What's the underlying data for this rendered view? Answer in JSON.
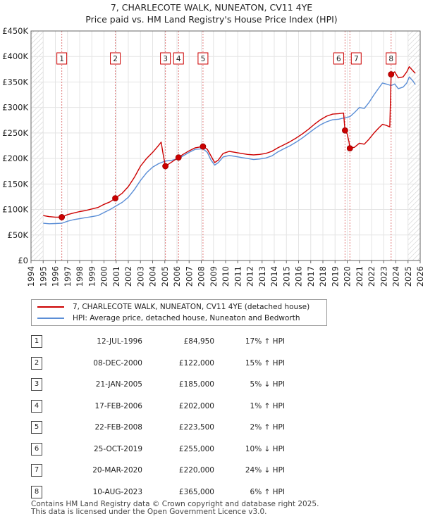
{
  "title_line1": "7, CHARLECOTE WALK, NUNEATON, CV11 4YE",
  "title_line2": "Price paid vs. HM Land Registry's House Price Index (HPI)",
  "chart_data": {
    "type": "line",
    "title": "Price paid vs. HM Land Registry's House Price Index (HPI)",
    "xlim": [
      1994,
      2026
    ],
    "ylim": [
      0,
      450000
    ],
    "x_ticks": [
      1994,
      1995,
      1996,
      1997,
      1998,
      1999,
      2000,
      2001,
      2002,
      2003,
      2004,
      2005,
      2006,
      2007,
      2008,
      2009,
      2010,
      2011,
      2012,
      2013,
      2014,
      2015,
      2016,
      2017,
      2018,
      2019,
      2020,
      2021,
      2022,
      2023,
      2024,
      2025,
      2026
    ],
    "y_ticks": [
      {
        "value": 0,
        "label": "£0"
      },
      {
        "value": 50000,
        "label": "£50K"
      },
      {
        "value": 100000,
        "label": "£100K"
      },
      {
        "value": 150000,
        "label": "£150K"
      },
      {
        "value": 200000,
        "label": "£200K"
      },
      {
        "value": 250000,
        "label": "£250K"
      },
      {
        "value": 300000,
        "label": "£300K"
      },
      {
        "value": 350000,
        "label": "£350K"
      },
      {
        "value": 400000,
        "label": "£400K"
      },
      {
        "value": 450000,
        "label": "£450K"
      }
    ],
    "series": [
      {
        "name": "7, CHARLECOTE WALK, NUNEATON, CV11 4YE (detached house)",
        "color": "#cc0000",
        "points": [
          [
            1995.0,
            88000
          ],
          [
            1995.5,
            86000
          ],
          [
            1996.0,
            85000
          ],
          [
            1996.53,
            84950
          ],
          [
            1997.0,
            90000
          ],
          [
            1997.5,
            93000
          ],
          [
            1998.0,
            96000
          ],
          [
            1998.5,
            98000
          ],
          [
            1999.0,
            101000
          ],
          [
            1999.5,
            104000
          ],
          [
            2000.0,
            110000
          ],
          [
            2000.5,
            115000
          ],
          [
            2000.93,
            122000
          ],
          [
            2001.5,
            132000
          ],
          [
            2002.0,
            145000
          ],
          [
            2002.5,
            163000
          ],
          [
            2003.0,
            185000
          ],
          [
            2003.5,
            200000
          ],
          [
            2004.0,
            212000
          ],
          [
            2004.4,
            223000
          ],
          [
            2004.7,
            232000
          ],
          [
            2004.85,
            210000
          ],
          [
            2005.05,
            185000
          ],
          [
            2005.5,
            192000
          ],
          [
            2006.13,
            202000
          ],
          [
            2006.5,
            208000
          ],
          [
            2007.0,
            215000
          ],
          [
            2007.5,
            221000
          ],
          [
            2008.14,
            223500
          ],
          [
            2008.5,
            218000
          ],
          [
            2008.8,
            205000
          ],
          [
            2009.1,
            192000
          ],
          [
            2009.4,
            197000
          ],
          [
            2009.8,
            210000
          ],
          [
            2010.3,
            214000
          ],
          [
            2010.8,
            212000
          ],
          [
            2011.3,
            210000
          ],
          [
            2011.8,
            208000
          ],
          [
            2012.3,
            207000
          ],
          [
            2012.8,
            208000
          ],
          [
            2013.3,
            210000
          ],
          [
            2013.8,
            214000
          ],
          [
            2014.3,
            221000
          ],
          [
            2014.8,
            227000
          ],
          [
            2015.3,
            233000
          ],
          [
            2015.8,
            240000
          ],
          [
            2016.3,
            248000
          ],
          [
            2016.8,
            257000
          ],
          [
            2017.3,
            267000
          ],
          [
            2017.8,
            276000
          ],
          [
            2018.3,
            283000
          ],
          [
            2018.8,
            287000
          ],
          [
            2019.3,
            288000
          ],
          [
            2019.7,
            289000
          ],
          [
            2019.82,
            255000
          ],
          [
            2020.0,
            248000
          ],
          [
            2020.15,
            232000
          ],
          [
            2020.22,
            220000
          ],
          [
            2020.6,
            222000
          ],
          [
            2021.0,
            230000
          ],
          [
            2021.4,
            228000
          ],
          [
            2021.8,
            238000
          ],
          [
            2022.2,
            250000
          ],
          [
            2022.6,
            260000
          ],
          [
            2022.9,
            267000
          ],
          [
            2023.2,
            265000
          ],
          [
            2023.5,
            262000
          ],
          [
            2023.61,
            365000
          ],
          [
            2023.9,
            370000
          ],
          [
            2024.2,
            358000
          ],
          [
            2024.6,
            360000
          ],
          [
            2024.9,
            370000
          ],
          [
            2025.1,
            380000
          ],
          [
            2025.4,
            372000
          ],
          [
            2025.6,
            367000
          ]
        ]
      },
      {
        "name": "HPI: Average price, detached house, Nuneaton and Bedworth",
        "color": "#5b8ed6",
        "points": [
          [
            1995.0,
            73000
          ],
          [
            1995.5,
            72000
          ],
          [
            1996.0,
            72500
          ],
          [
            1996.53,
            73000
          ],
          [
            1997.0,
            77000
          ],
          [
            1997.5,
            80000
          ],
          [
            1998.0,
            82000
          ],
          [
            1998.5,
            84000
          ],
          [
            1999.0,
            86000
          ],
          [
            1999.5,
            88000
          ],
          [
            2000.0,
            94000
          ],
          [
            2000.5,
            100000
          ],
          [
            2000.93,
            106000
          ],
          [
            2001.5,
            114000
          ],
          [
            2002.0,
            124000
          ],
          [
            2002.5,
            139000
          ],
          [
            2003.0,
            157000
          ],
          [
            2003.5,
            172000
          ],
          [
            2004.0,
            183000
          ],
          [
            2004.5,
            190000
          ],
          [
            2005.05,
            195000
          ],
          [
            2005.5,
            196000
          ],
          [
            2006.13,
            200000
          ],
          [
            2006.5,
            205000
          ],
          [
            2007.0,
            212000
          ],
          [
            2007.5,
            218000
          ],
          [
            2008.14,
            219000
          ],
          [
            2008.5,
            212000
          ],
          [
            2008.8,
            197000
          ],
          [
            2009.1,
            187000
          ],
          [
            2009.4,
            192000
          ],
          [
            2009.8,
            203000
          ],
          [
            2010.3,
            206000
          ],
          [
            2010.8,
            204000
          ],
          [
            2011.3,
            202000
          ],
          [
            2011.8,
            200000
          ],
          [
            2012.3,
            198000
          ],
          [
            2012.8,
            199000
          ],
          [
            2013.3,
            201000
          ],
          [
            2013.8,
            205000
          ],
          [
            2014.3,
            213000
          ],
          [
            2014.8,
            219000
          ],
          [
            2015.3,
            225000
          ],
          [
            2015.8,
            232000
          ],
          [
            2016.3,
            240000
          ],
          [
            2016.8,
            249000
          ],
          [
            2017.3,
            258000
          ],
          [
            2017.8,
            266000
          ],
          [
            2018.3,
            272000
          ],
          [
            2018.8,
            276000
          ],
          [
            2019.3,
            277000
          ],
          [
            2019.82,
            280000
          ],
          [
            2020.22,
            282000
          ],
          [
            2020.6,
            290000
          ],
          [
            2021.0,
            300000
          ],
          [
            2021.4,
            298000
          ],
          [
            2021.8,
            310000
          ],
          [
            2022.2,
            325000
          ],
          [
            2022.6,
            338000
          ],
          [
            2022.9,
            348000
          ],
          [
            2023.2,
            346000
          ],
          [
            2023.61,
            343000
          ],
          [
            2023.9,
            346000
          ],
          [
            2024.2,
            337000
          ],
          [
            2024.6,
            340000
          ],
          [
            2024.9,
            348000
          ],
          [
            2025.1,
            360000
          ],
          [
            2025.4,
            352000
          ],
          [
            2025.6,
            345000
          ]
        ]
      }
    ],
    "sales": [
      {
        "num": "1",
        "date": "12-JUL-1996",
        "price": "£84,950",
        "hpi": "17% ↑ HPI",
        "x": 1996.53,
        "y": 84950
      },
      {
        "num": "2",
        "date": "08-DEC-2000",
        "price": "£122,000",
        "hpi": "15% ↑ HPI",
        "x": 2000.93,
        "y": 122000
      },
      {
        "num": "3",
        "date": "21-JAN-2005",
        "price": "£185,000",
        "hpi": "5% ↓ HPI",
        "x": 2005.05,
        "y": 185000
      },
      {
        "num": "4",
        "date": "17-FEB-2006",
        "price": "£202,000",
        "hpi": "1% ↑ HPI",
        "x": 2006.13,
        "y": 202000
      },
      {
        "num": "5",
        "date": "22-FEB-2008",
        "price": "£223,500",
        "hpi": "2% ↑ HPI",
        "x": 2008.14,
        "y": 223500
      },
      {
        "num": "6",
        "date": "25-OCT-2019",
        "price": "£255,000",
        "hpi": "10% ↓ HPI",
        "x": 2019.82,
        "y": 255000
      },
      {
        "num": "7",
        "date": "20-MAR-2020",
        "price": "£220,000",
        "hpi": "24% ↓ HPI",
        "x": 2020.22,
        "y": 220000
      },
      {
        "num": "8",
        "date": "10-AUG-2023",
        "price": "£365,000",
        "hpi": "6% ↑ HPI",
        "x": 2023.61,
        "y": 365000
      }
    ],
    "hatched_ranges": [
      [
        1994,
        1995
      ],
      [
        2025.0,
        2026
      ]
    ]
  },
  "legend": {
    "property": "7, CHARLECOTE WALK, NUNEATON, CV11 4YE (detached house)",
    "hpi": "HPI: Average price, detached house, Nuneaton and Bedworth"
  },
  "footer_line1": "Contains HM Land Registry data © Crown copyright and database right 2025.",
  "footer_line2": "This data is licensed under the Open Government Licence v3.0."
}
